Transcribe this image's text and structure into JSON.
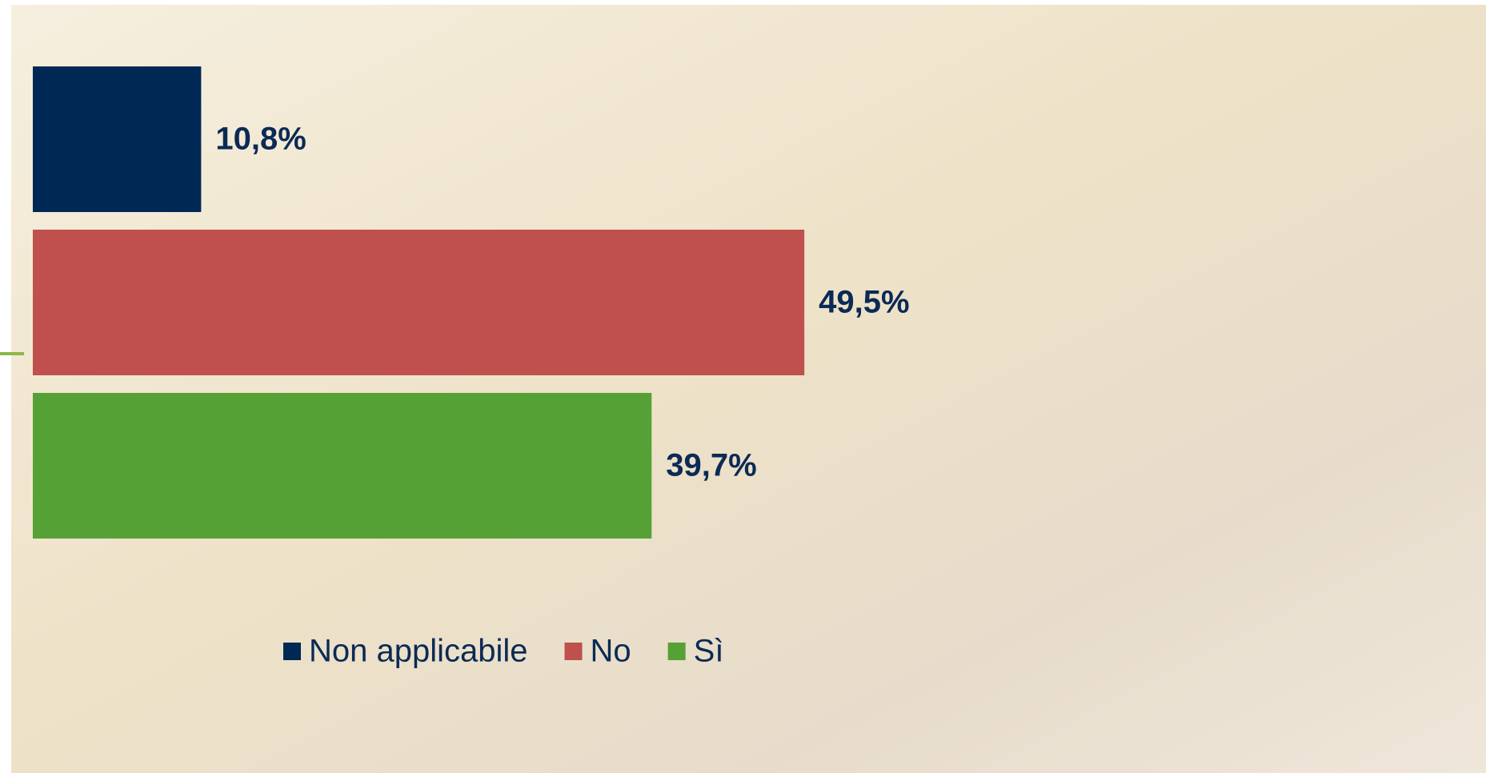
{
  "chart_data": {
    "type": "bar",
    "orientation": "horizontal",
    "series": [
      {
        "name": "Non applicabile",
        "color": "#002855",
        "values": [
          10.8
        ],
        "value_labels": [
          "10,8%"
        ]
      },
      {
        "name": "No",
        "color": "#c0504d",
        "values": [
          49.5
        ],
        "value_labels": [
          "49,5%"
        ]
      },
      {
        "name": "Sì",
        "color": "#56a135",
        "values": [
          39.7
        ],
        "value_labels": [
          "39,7%"
        ]
      }
    ],
    "xlim": [
      0,
      90
    ],
    "legend": "bottom"
  }
}
